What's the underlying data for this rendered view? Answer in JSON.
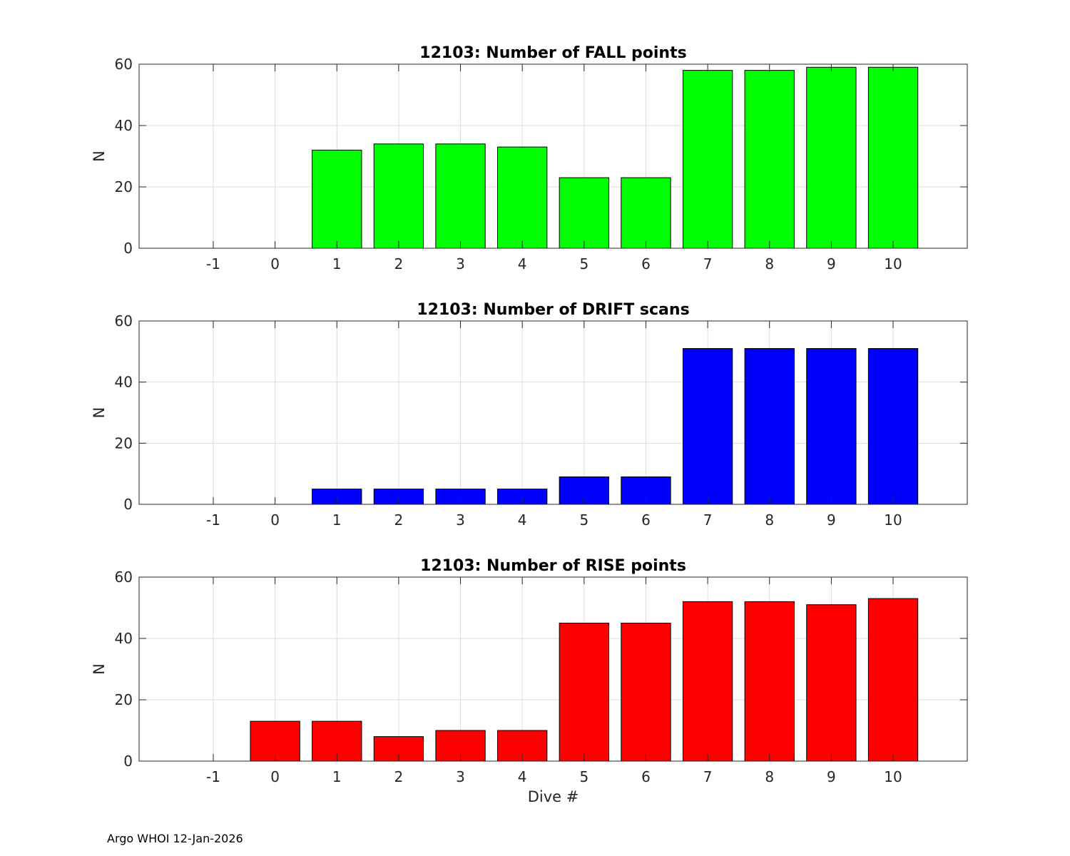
{
  "footer": "Argo WHOI 12-Jan-2026",
  "chart_data": [
    {
      "type": "bar",
      "title": "12103: Number of FALL points",
      "xlabel": "",
      "ylabel": "N",
      "x": [
        -1,
        0,
        1,
        2,
        3,
        4,
        5,
        6,
        7,
        8,
        9,
        10
      ],
      "values": [
        0,
        0,
        32,
        34,
        34,
        33,
        23,
        23,
        58,
        58,
        59,
        59
      ],
      "xlim": [
        -2.2,
        11.2
      ],
      "ylim": [
        0,
        60
      ],
      "yticks": [
        0,
        20,
        40,
        60
      ],
      "grid": true,
      "color": "#00ff00"
    },
    {
      "type": "bar",
      "title": "12103: Number of DRIFT scans",
      "xlabel": "",
      "ylabel": "N",
      "x": [
        -1,
        0,
        1,
        2,
        3,
        4,
        5,
        6,
        7,
        8,
        9,
        10
      ],
      "values": [
        0,
        0,
        5,
        5,
        5,
        5,
        9,
        9,
        51,
        51,
        51,
        51
      ],
      "xlim": [
        -2.2,
        11.2
      ],
      "ylim": [
        0,
        60
      ],
      "yticks": [
        0,
        20,
        40,
        60
      ],
      "grid": true,
      "color": "#0000ff"
    },
    {
      "type": "bar",
      "title": "12103: Number of RISE points",
      "xlabel": "Dive #",
      "ylabel": "N",
      "x": [
        -1,
        0,
        1,
        2,
        3,
        4,
        5,
        6,
        7,
        8,
        9,
        10
      ],
      "values": [
        0,
        13,
        13,
        8,
        10,
        10,
        45,
        45,
        52,
        52,
        51,
        53
      ],
      "xlim": [
        -2.2,
        11.2
      ],
      "ylim": [
        0,
        60
      ],
      "yticks": [
        0,
        20,
        40,
        60
      ],
      "grid": true,
      "color": "#ff0000"
    }
  ]
}
